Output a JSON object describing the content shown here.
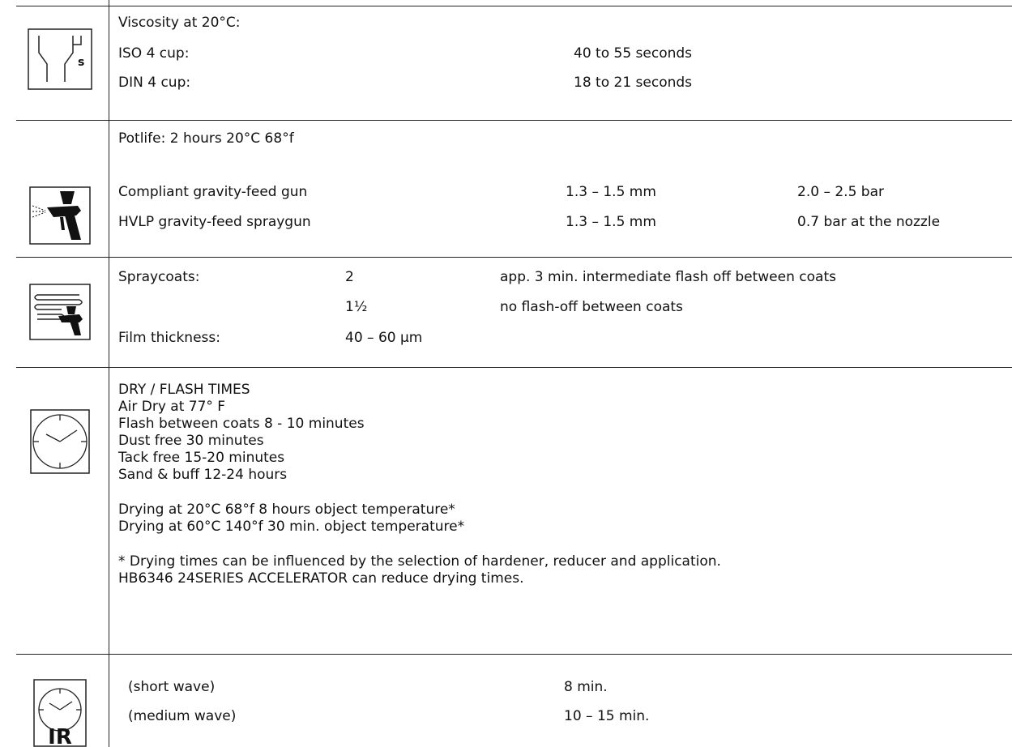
{
  "viscosity": {
    "icon": "viscosity-cup-icon",
    "title": "Viscosity at 20°C:",
    "rows": [
      {
        "label": "ISO 4 cup:",
        "value": "40 to 55 seconds"
      },
      {
        "label": "DIN 4 cup:",
        "value": "18 to 21 seconds"
      }
    ]
  },
  "spraygun": {
    "icon": "spray-gun-icon",
    "potlife": "Potlife: 2 hours  20°C   68°f",
    "rows": [
      {
        "label": "Compliant gravity-feed gun",
        "nozzle": "1.3 – 1.5 mm",
        "pressure": "2.0 – 2.5 bar"
      },
      {
        "label": "HVLP gravity-feed spraygun",
        "nozzle": "1.3 – 1.5 mm",
        "pressure": "0.7 bar at the nozzle"
      }
    ]
  },
  "spraycoats": {
    "icon": "spray-coats-icon",
    "rows": [
      {
        "label": "Spraycoats:",
        "value": "2",
        "note": "app. 3 min. intermediate flash off between coats"
      },
      {
        "label": "",
        "value": "1½",
        "note": "no flash-off between coats"
      },
      {
        "label": "Film thickness:",
        "value": "40 – 60 µm",
        "note": ""
      }
    ]
  },
  "drying": {
    "icon": "clock-icon",
    "heading": "DRY / FLASH TIMES",
    "lines": [
      "Air Dry at 77° F",
      "Flash between coats 8 - 10 minutes",
      "Dust free   30 minutes",
      "Tack free   15-20 minutes",
      "Sand & buff 12-24 hours"
    ],
    "temps": [
      "Drying at 20°C   68°f  8 hours object temperature*",
      "Drying at 60°C  140°f  30 min. object temperature*"
    ],
    "notes": [
      "* Drying times can be influenced by the selection of hardener, reducer and application.",
      "HB6346 24SERIES ACCELERATOR  can reduce drying times."
    ]
  },
  "infrared": {
    "icon": "ir-clock-icon",
    "icon_text": "IR",
    "rows": [
      {
        "label": "(short wave)",
        "value": "8 min."
      },
      {
        "label": "(medium wave)",
        "value": "10 – 15 min."
      }
    ]
  }
}
